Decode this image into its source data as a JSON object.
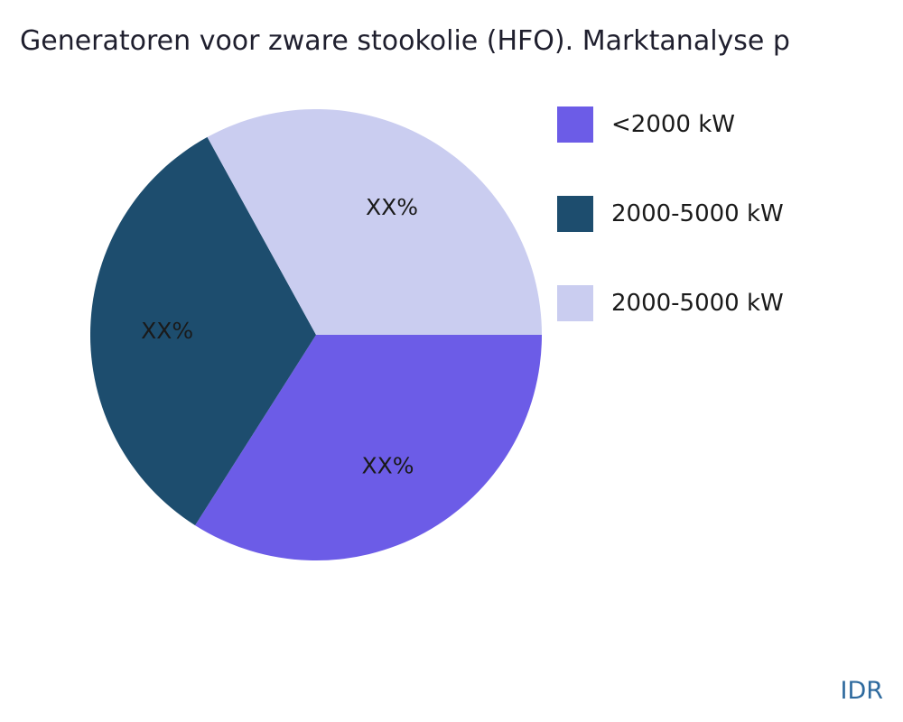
{
  "title": "Generatoren voor zware stookolie (HFO). Marktanalyse p",
  "watermark": "IDR",
  "chart_data": {
    "type": "pie",
    "title": "Generatoren voor zware stookolie (HFO). Marktanalyse p",
    "legend_position": "right",
    "start_angle_deg_from_east_clockwise": 0,
    "slices": [
      {
        "legend_label": "<2000 kW",
        "display_label": "XX%",
        "value": 34,
        "color": "#6c5ce7"
      },
      {
        "legend_label": "2000-5000 kW",
        "display_label": "XX%",
        "value": 33,
        "color": "#1d4d6e"
      },
      {
        "legend_label": "2000-5000 kW",
        "display_label": "XX%",
        "value": 33,
        "color": "#cacdf0"
      }
    ]
  }
}
